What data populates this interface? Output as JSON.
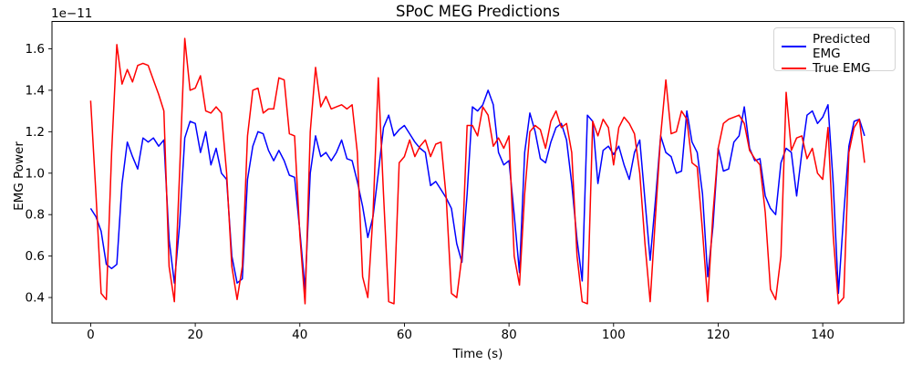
{
  "figure": {
    "background": "#ffffff"
  },
  "axes": {
    "spine_color": "#000000",
    "tick_color": "#000000",
    "text_color": "#000000",
    "grid": false
  },
  "legend": {
    "position": "upper right"
  },
  "chart_data": {
    "type": "line",
    "title": "SPoC MEG Predictions",
    "xlabel": "Time (s)",
    "ylabel": "EMG Power",
    "y_offset_label": "1e−11",
    "y_scale_factor": "1e-11",
    "x_ticks": [
      0,
      20,
      40,
      60,
      80,
      100,
      120,
      140
    ],
    "y_ticks": [
      0.4,
      0.6,
      0.8,
      1.0,
      1.2,
      1.4,
      1.6
    ],
    "xlim": [
      -7.4,
      155.5
    ],
    "ylim": [
      0.277,
      1.732
    ],
    "x_seconds": {
      "start": 0,
      "step": 1,
      "count": 149
    },
    "series": [
      {
        "name": "Predicted EMG",
        "color": "#0000ff",
        "values": [
          0.83,
          0.79,
          0.72,
          0.56,
          0.54,
          0.56,
          0.95,
          1.15,
          1.08,
          1.02,
          1.17,
          1.15,
          1.17,
          1.13,
          1.16,
          0.68,
          0.47,
          0.75,
          1.17,
          1.25,
          1.24,
          1.1,
          1.2,
          1.04,
          1.12,
          1.0,
          0.97,
          0.6,
          0.47,
          0.49,
          0.97,
          1.13,
          1.2,
          1.19,
          1.11,
          1.06,
          1.11,
          1.06,
          0.99,
          0.98,
          0.72,
          0.44,
          1.0,
          1.18,
          1.08,
          1.1,
          1.06,
          1.1,
          1.16,
          1.07,
          1.06,
          0.96,
          0.84,
          0.69,
          0.79,
          1.0,
          1.22,
          1.28,
          1.18,
          1.21,
          1.23,
          1.19,
          1.15,
          1.12,
          1.1,
          0.94,
          0.96,
          0.92,
          0.88,
          0.83,
          0.66,
          0.57,
          0.9,
          1.32,
          1.3,
          1.33,
          1.4,
          1.33,
          1.1,
          1.04,
          1.06,
          0.8,
          0.52,
          1.1,
          1.29,
          1.2,
          1.07,
          1.05,
          1.15,
          1.22,
          1.24,
          1.16,
          0.95,
          0.68,
          0.48,
          1.28,
          1.25,
          0.95,
          1.11,
          1.13,
          1.09,
          1.13,
          1.04,
          0.97,
          1.1,
          1.16,
          0.87,
          0.58,
          0.87,
          1.18,
          1.1,
          1.08,
          1.0,
          1.01,
          1.3,
          1.15,
          1.1,
          0.9,
          0.5,
          0.74,
          1.12,
          1.01,
          1.02,
          1.15,
          1.18,
          1.32,
          1.12,
          1.06,
          1.07,
          0.89,
          0.83,
          0.8,
          1.05,
          1.12,
          1.1,
          0.89,
          1.1,
          1.28,
          1.3,
          1.24,
          1.27,
          1.33,
          0.95,
          0.42,
          0.8,
          1.13,
          1.25,
          1.26,
          1.18
        ]
      },
      {
        "name": "True EMG",
        "color": "#ff0000",
        "values": [
          1.35,
          0.9,
          0.42,
          0.39,
          1.1,
          1.62,
          1.43,
          1.5,
          1.44,
          1.52,
          1.53,
          1.52,
          1.45,
          1.38,
          1.3,
          0.55,
          0.38,
          1.0,
          1.65,
          1.4,
          1.41,
          1.47,
          1.3,
          1.29,
          1.32,
          1.29,
          1.0,
          0.55,
          0.39,
          0.55,
          1.18,
          1.4,
          1.41,
          1.29,
          1.31,
          1.31,
          1.46,
          1.45,
          1.19,
          1.18,
          0.7,
          0.37,
          1.2,
          1.51,
          1.32,
          1.37,
          1.31,
          1.32,
          1.33,
          1.31,
          1.33,
          1.1,
          0.5,
          0.4,
          0.8,
          1.46,
          0.9,
          0.38,
          0.37,
          1.05,
          1.08,
          1.16,
          1.08,
          1.13,
          1.16,
          1.08,
          1.14,
          1.15,
          0.88,
          0.42,
          0.4,
          0.6,
          1.23,
          1.23,
          1.18,
          1.32,
          1.28,
          1.13,
          1.17,
          1.12,
          1.18,
          0.6,
          0.46,
          0.9,
          1.2,
          1.23,
          1.21,
          1.12,
          1.25,
          1.3,
          1.22,
          1.24,
          1.1,
          0.6,
          0.38,
          0.37,
          1.25,
          1.18,
          1.26,
          1.22,
          1.04,
          1.22,
          1.27,
          1.24,
          1.19,
          1.0,
          0.66,
          0.38,
          0.79,
          1.18,
          1.45,
          1.19,
          1.2,
          1.3,
          1.26,
          1.05,
          1.03,
          0.72,
          0.38,
          0.8,
          1.12,
          1.24,
          1.26,
          1.27,
          1.28,
          1.24,
          1.11,
          1.07,
          1.04,
          0.81,
          0.44,
          0.39,
          0.6,
          1.39,
          1.11,
          1.17,
          1.18,
          1.07,
          1.12,
          1.0,
          0.97,
          1.22,
          0.7,
          0.37,
          0.4,
          1.1,
          1.22,
          1.26,
          1.05
        ]
      }
    ]
  }
}
